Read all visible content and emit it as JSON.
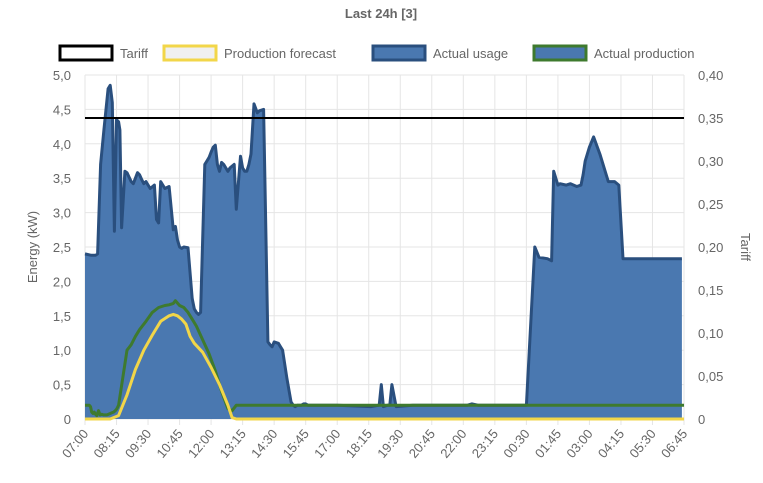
{
  "chart_data": {
    "type": "line",
    "title": "Last 24h [3]",
    "legend": [
      "Tariff",
      "Production forecast",
      "Actual usage",
      "Actual production"
    ],
    "colors": {
      "tariff": "#000000",
      "forecast": "#f2d649",
      "forecast_fill": "#f0f0f0",
      "usage_line": "#2a4f7e",
      "usage_fill": "#4a78b0",
      "production": "#3e7a2e"
    },
    "ylabel_left": "Energy (kW)",
    "ylabel_right": "Tariff",
    "ylim_left": [
      0,
      5
    ],
    "ylim_right": [
      0,
      0.4
    ],
    "y_ticks_left": [
      "0",
      "0,5",
      "1,0",
      "1,5",
      "2,0",
      "2,5",
      "3,0",
      "3,5",
      "4,0",
      "4,5",
      "5,0"
    ],
    "y_ticks_right": [
      "0",
      "0,05",
      "0,10",
      "0,15",
      "0,20",
      "0,25",
      "0,30",
      "0,35",
      "0,40"
    ],
    "x_ticks": [
      "07:00",
      "08:15",
      "09:30",
      "10:45",
      "12:00",
      "13:15",
      "14:30",
      "15:45",
      "17:00",
      "18:15",
      "19:30",
      "20:45",
      "22:00",
      "23:15",
      "00:30",
      "01:45",
      "03:00",
      "04:15",
      "05:30",
      "06:45"
    ],
    "x_range_minutes": [
      0,
      1425
    ],
    "tariff_value": 0.35,
    "series": [
      {
        "name": "Actual usage",
        "x": [
          0,
          15,
          25,
          30,
          37,
          45,
          50,
          55,
          60,
          65,
          70,
          75,
          80,
          83,
          87,
          95,
          100,
          110,
          115,
          125,
          130,
          135,
          140,
          145,
          155,
          165,
          170,
          175,
          180,
          190,
          200,
          210,
          215,
          220,
          225,
          230,
          235,
          245,
          255,
          260,
          265,
          270,
          275,
          285,
          290,
          295,
          300,
          305,
          310,
          315,
          320,
          325,
          330,
          335,
          340,
          345,
          355,
          360,
          370,
          375,
          380,
          385,
          390,
          395,
          402,
          410,
          415,
          425,
          435,
          440,
          445,
          450,
          460,
          465,
          470,
          480,
          490,
          495,
          500,
          505,
          510,
          515,
          520,
          525,
          530,
          535,
          545,
          560,
          600,
          680,
          700,
          705,
          710,
          720,
          725,
          730,
          740,
          780,
          830,
          870,
          900,
          905,
          910,
          920,
          935,
          945,
          955,
          1050,
          1070,
          1080,
          1100,
          1110,
          1115,
          1125,
          1130,
          1145,
          1155,
          1170,
          1180,
          1185,
          1190,
          1200,
          1210,
          1225,
          1245,
          1260,
          1270,
          1280,
          1285,
          1290,
          1295,
          1300,
          1310,
          1320,
          1325,
          1330,
          1335,
          1340,
          1345,
          1350,
          1355,
          1360,
          1365,
          1370,
          1375,
          1380,
          1385,
          1390,
          1395,
          1400,
          1405,
          1410,
          1415,
          1420
        ],
        "values": [
          2.4,
          2.38,
          2.38,
          2.4,
          3.7,
          4.2,
          4.5,
          4.8,
          4.85,
          4.6,
          2.73,
          4.35,
          4.32,
          4.2,
          2.78,
          3.6,
          3.58,
          3.45,
          3.42,
          3.58,
          3.55,
          3.48,
          3.42,
          3.45,
          3.35,
          3.4,
          2.9,
          2.85,
          3.45,
          3.35,
          3.38,
          2.75,
          2.8,
          2.6,
          2.5,
          2.48,
          2.5,
          2.49,
          1.75,
          1.6,
          1.55,
          1.52,
          1.55,
          3.7,
          3.75,
          3.8,
          3.88,
          3.95,
          3.98,
          3.7,
          3.6,
          3.73,
          3.7,
          3.65,
          3.6,
          3.65,
          3.7,
          3.05,
          3.82,
          3.65,
          3.6,
          3.6,
          3.7,
          3.85,
          4.58,
          4.45,
          4.48,
          4.5,
          1.12,
          1.08,
          1.05,
          1.12,
          1.1,
          1.05,
          1.0,
          0.6,
          0.25,
          0.2,
          0.18,
          0.2,
          0.2,
          0.2,
          0.22,
          0.22,
          0.2,
          0.2,
          0.2,
          0.2,
          0.2,
          0.18,
          0.2,
          0.5,
          0.18,
          0.2,
          0.2,
          0.5,
          0.18,
          0.2,
          0.2,
          0.2,
          0.2,
          0.2,
          0.2,
          0.22,
          0.2,
          0.2,
          0.2,
          0.2,
          2.5,
          2.35,
          2.33,
          2.3,
          3.6,
          3.4,
          3.42,
          3.4,
          3.42,
          3.38,
          3.4,
          3.55,
          3.75,
          3.95,
          4.1,
          3.85,
          3.45,
          3.45,
          3.4,
          2.33,
          2.33,
          2.33,
          2.33,
          2.33,
          2.33,
          2.33,
          2.33,
          2.33,
          2.33,
          2.33,
          2.33,
          2.33,
          2.33,
          2.33,
          2.33,
          2.33,
          2.33,
          2.33,
          2.33,
          2.33,
          2.33,
          2.33,
          2.33,
          2.33,
          2.33,
          2.33
        ]
      },
      {
        "name": "Actual production",
        "x": [
          0,
          10,
          13,
          16,
          19,
          22,
          25,
          28,
          32,
          36,
          40,
          44,
          48,
          52,
          56,
          60,
          64,
          68,
          72,
          76,
          80,
          90,
          100,
          110,
          120,
          130,
          145,
          160,
          175,
          190,
          200,
          210,
          215,
          225,
          235,
          245,
          255,
          265,
          280,
          295,
          310,
          325,
          340,
          350,
          360,
          375,
          395,
          420,
          500,
          600,
          700,
          800,
          900,
          1000,
          1100,
          1200,
          1300,
          1425
        ],
        "values": [
          0.2,
          0.2,
          0.18,
          0.1,
          0.08,
          0.1,
          0.07,
          0.05,
          0.12,
          0.06,
          0.07,
          0.06,
          0.06,
          0.06,
          0.07,
          0.08,
          0.09,
          0.1,
          0.12,
          0.15,
          0.2,
          0.6,
          1.0,
          1.08,
          1.2,
          1.3,
          1.42,
          1.55,
          1.62,
          1.65,
          1.66,
          1.68,
          1.72,
          1.65,
          1.62,
          1.55,
          1.45,
          1.35,
          1.15,
          0.95,
          0.7,
          0.4,
          0.15,
          0.12,
          0.2,
          0.2,
          0.2,
          0.2,
          0.2,
          0.2,
          0.2,
          0.2,
          0.2,
          0.2,
          0.2,
          0.2,
          0.2,
          0.2
        ]
      },
      {
        "name": "Production forecast",
        "x": [
          0,
          60,
          80,
          100,
          120,
          140,
          160,
          180,
          200,
          210,
          220,
          230,
          240,
          250,
          260,
          280,
          300,
          320,
          340,
          350,
          360,
          1425
        ],
        "values": [
          0,
          0,
          0.05,
          0.35,
          0.72,
          1.0,
          1.22,
          1.42,
          1.5,
          1.52,
          1.5,
          1.45,
          1.38,
          1.2,
          1.1,
          0.97,
          0.75,
          0.5,
          0.2,
          0.02,
          0,
          0
        ]
      }
    ]
  }
}
